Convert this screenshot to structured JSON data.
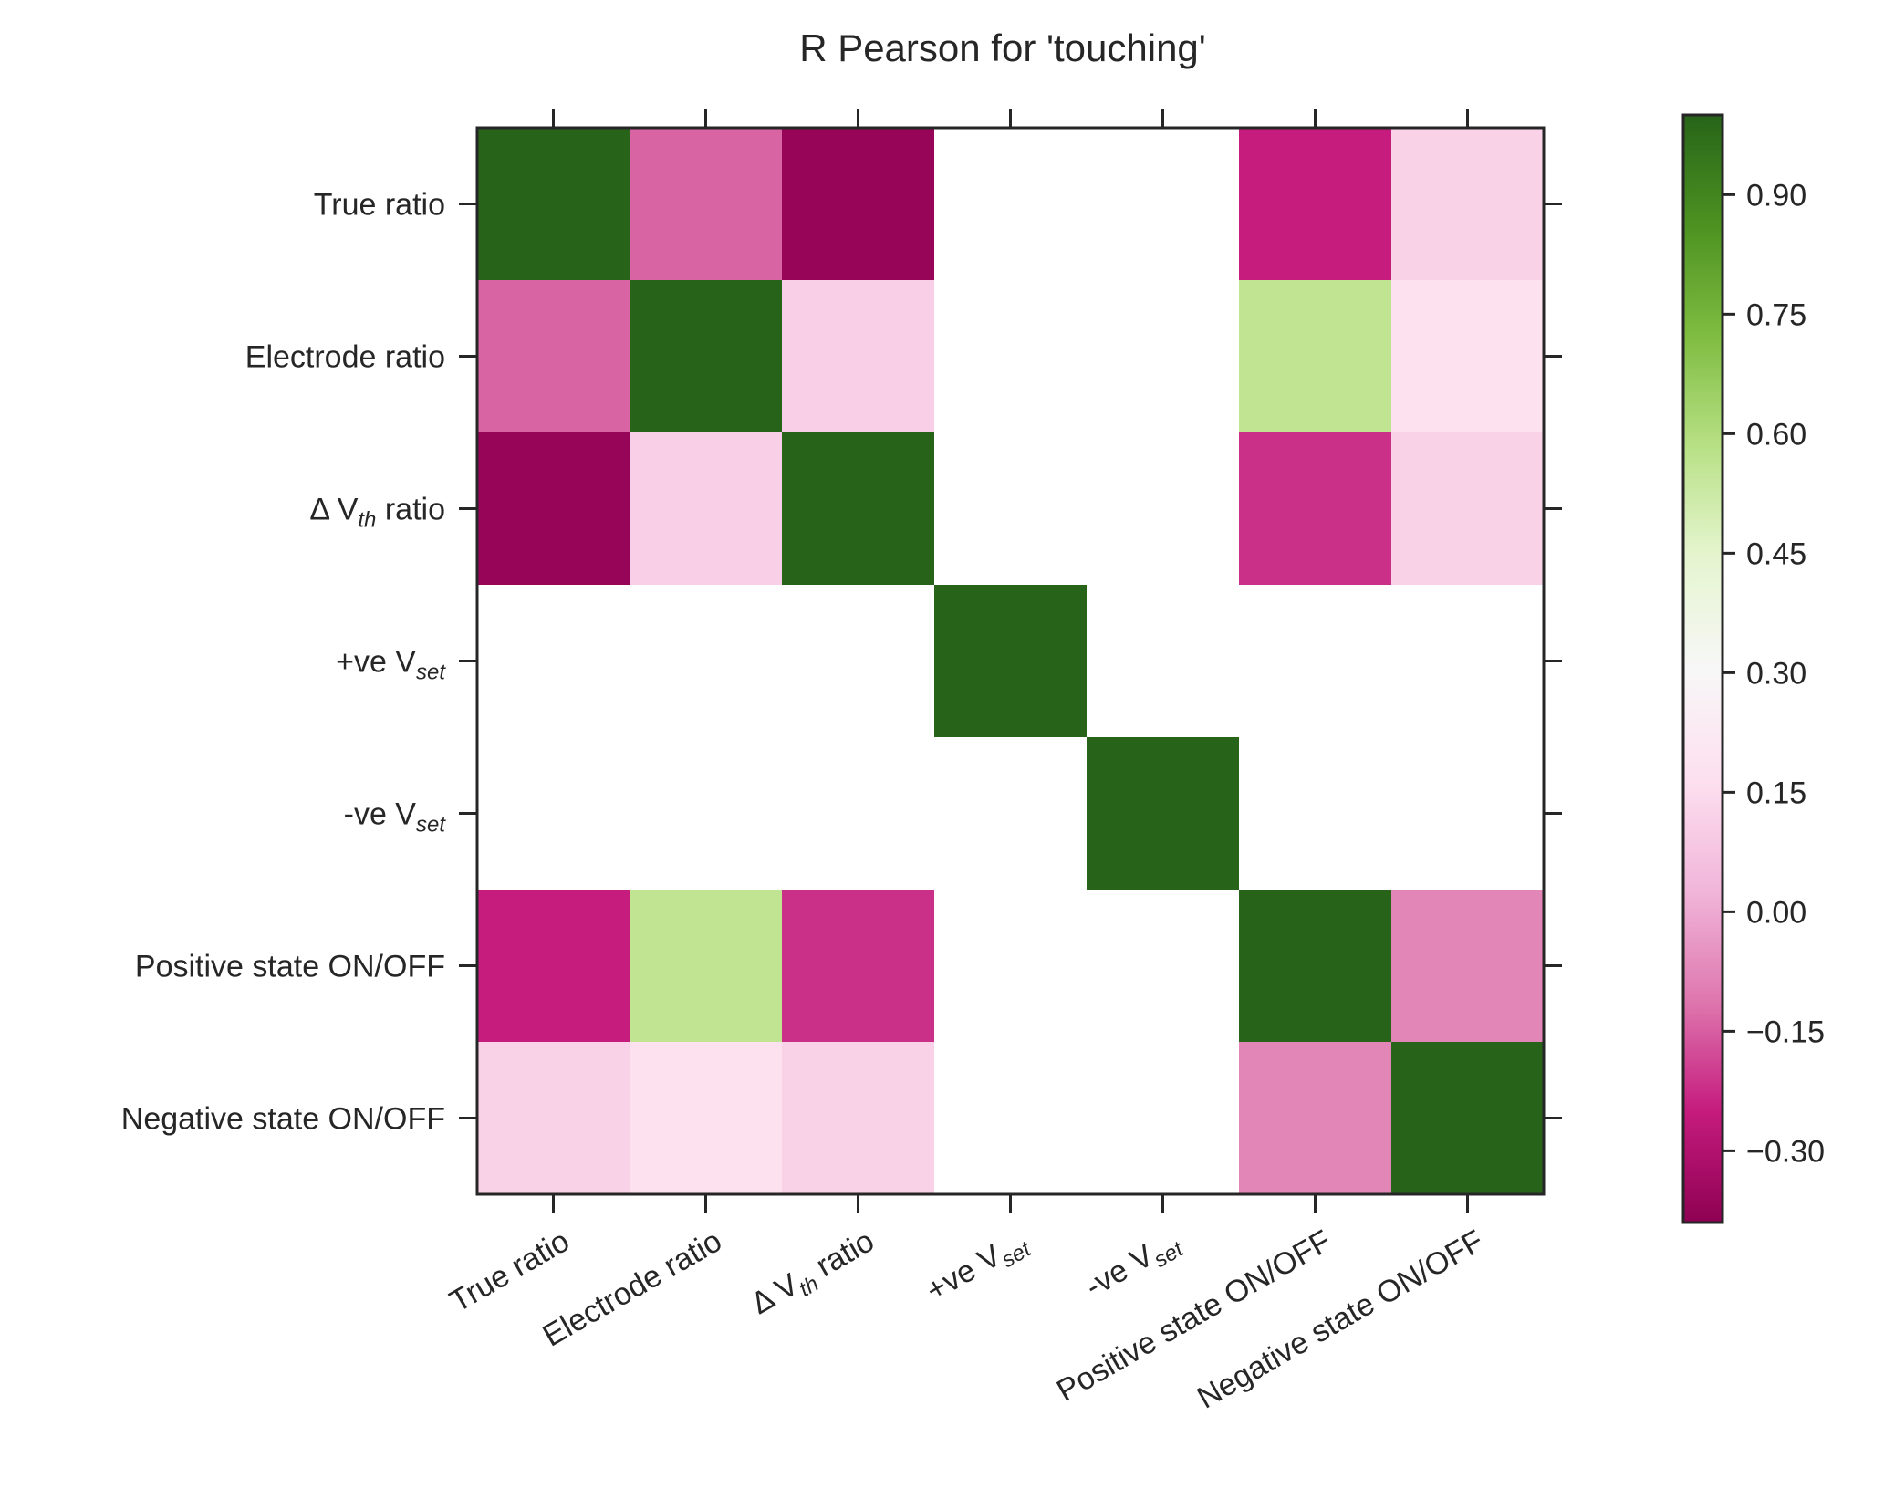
{
  "chart_data": {
    "type": "heatmap",
    "title": "R Pearson for 'touching'",
    "labels": [
      {
        "text": "True ratio",
        "sub": ""
      },
      {
        "text": "Electrode ratio",
        "sub": ""
      },
      {
        "text": "Δ V",
        "sub": "th",
        "suffix": " ratio"
      },
      {
        "text": "+ve V",
        "sub": "set",
        "suffix": ""
      },
      {
        "text": "-ve V",
        "sub": "set",
        "suffix": ""
      },
      {
        "text": "Positive state ON/OFF",
        "sub": ""
      },
      {
        "text": "Negative state ON/OFF",
        "sub": ""
      }
    ],
    "matrix": [
      [
        1.0,
        -0.14,
        -0.37,
        null,
        null,
        -0.25,
        0.12
      ],
      [
        -0.14,
        1.0,
        0.11,
        null,
        null,
        0.56,
        0.17
      ],
      [
        -0.37,
        0.11,
        1.0,
        null,
        null,
        -0.22,
        0.12
      ],
      [
        null,
        null,
        null,
        1.0,
        null,
        null,
        null
      ],
      [
        null,
        null,
        null,
        null,
        1.0,
        null,
        null
      ],
      [
        -0.25,
        0.56,
        -0.22,
        null,
        null,
        1.0,
        -0.08
      ],
      [
        0.12,
        0.17,
        0.12,
        null,
        null,
        -0.08,
        1.0
      ]
    ],
    "missing_color": "#ffffff",
    "colorbar": {
      "vmin": -0.39,
      "vmax": 1.0,
      "ticks": [
        "−0.30",
        "−0.15",
        "0.00",
        "0.15",
        "0.30",
        "0.45",
        "0.60",
        "0.75",
        "0.90"
      ],
      "tick_values": [
        -0.3,
        -0.15,
        0.0,
        0.15,
        0.3,
        0.45,
        0.6,
        0.75,
        0.9
      ],
      "colormap": "PiYG",
      "stops": [
        "#8e0152",
        "#c51b7d",
        "#de77ae",
        "#f1b6da",
        "#fde0ef",
        "#f7f7f7",
        "#e6f5d0",
        "#b8e186",
        "#7fbc41",
        "#4d9221",
        "#276419"
      ]
    },
    "grid": false
  }
}
